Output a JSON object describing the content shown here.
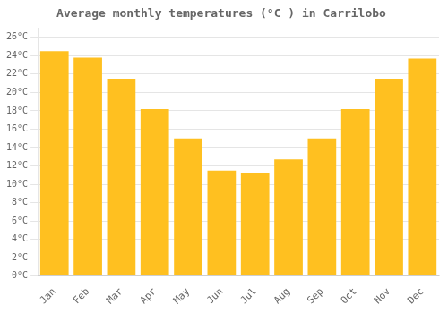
{
  "chart_data": {
    "type": "bar",
    "title": "Average monthly temperatures (°C ) in Carrilobo",
    "categories": [
      "Jan",
      "Feb",
      "Mar",
      "Apr",
      "May",
      "Jun",
      "Jul",
      "Aug",
      "Sep",
      "Oct",
      "Nov",
      "Dec"
    ],
    "values": [
      24.5,
      23.8,
      21.5,
      18.2,
      15.0,
      11.5,
      11.2,
      12.7,
      15.0,
      18.2,
      21.5,
      23.7
    ],
    "color": "#FFC020",
    "ylim": [
      0,
      27
    ],
    "yticks": [
      {
        "value": 0,
        "label": "0°C"
      },
      {
        "value": 2,
        "label": "2°C"
      },
      {
        "value": 4,
        "label": "4°C"
      },
      {
        "value": 6,
        "label": "6°C"
      },
      {
        "value": 8,
        "label": "8°C"
      },
      {
        "value": 10,
        "label": "10°C"
      },
      {
        "value": 12,
        "label": "12°C"
      },
      {
        "value": 14,
        "label": "14°C"
      },
      {
        "value": 16,
        "label": "16°C"
      },
      {
        "value": 18,
        "label": "18°C"
      },
      {
        "value": 20,
        "label": "20°C"
      },
      {
        "value": 22,
        "label": "22°C"
      },
      {
        "value": 24,
        "label": "24°C"
      },
      {
        "value": 26,
        "label": "26°C"
      }
    ],
    "grid": true
  }
}
